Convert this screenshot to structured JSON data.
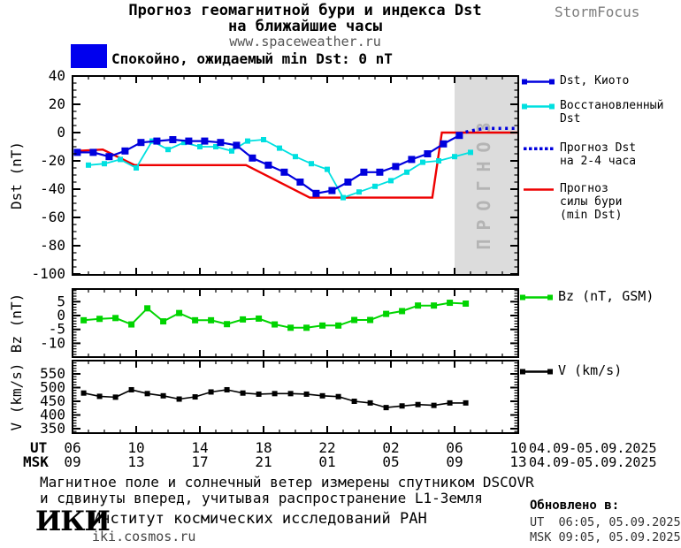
{
  "header": {
    "title_line1": "Прогноз геомагнитной бури и индекса Dst",
    "title_line2": "на ближайшие часы",
    "website": "www.spaceweather.ru",
    "brand": "StormFocus"
  },
  "status_banner": {
    "swatch_color": "#0000ee",
    "text": "Спокойно, ожидаемый min Dst: 0 nT"
  },
  "colors": {
    "dst_kyoto": "#0000dd",
    "dst_reconstructed": "#00e0e0",
    "dst_forecast": "#0000dd",
    "storm_forecast": "#ee0000",
    "bz": "#00d400",
    "v": "#000000",
    "forecast_region_bg": "#dcdcdc",
    "forecast_region_text": "#b4b4b4"
  },
  "chart_data": {
    "type": "line",
    "title": "Прогноз геомагнитной бури и индекса Dst на ближайшие часы",
    "x_axis": {
      "row1_label": "UT",
      "row2_label": "MSK",
      "major_hours": [
        6,
        10,
        14,
        18,
        22,
        26,
        30,
        34
      ],
      "ut_labels": [
        "06",
        "10",
        "14",
        "18",
        "22",
        "02",
        "06",
        "10"
      ],
      "msk_labels": [
        "09",
        "13",
        "17",
        "21",
        "01",
        "05",
        "09",
        "13"
      ],
      "date_note": "04.09-05.09.2025",
      "hours_range": [
        6,
        34
      ]
    },
    "panels": [
      {
        "id": "main",
        "ylabel": "Dst (nT)",
        "ylim": [
          -100,
          40
        ],
        "yticks": [
          40,
          20,
          0,
          -20,
          -40,
          -60,
          -80,
          -100
        ],
        "forecast_region": {
          "from_hour": 30,
          "to_hour": 34,
          "label": "ПРОГНОЗ"
        },
        "series": [
          {
            "id": "storm-forecast",
            "name": "Прогноз силы бури (min Dst)",
            "color": "#ee0000",
            "width": 2.4,
            "points": [
              [
                6.2,
                -13
              ],
              [
                7.9,
                -12
              ],
              [
                9.9,
                -23
              ],
              [
                16.9,
                -23
              ],
              [
                20.9,
                -46
              ],
              [
                28.6,
                -46
              ],
              [
                29.2,
                0
              ],
              [
                34,
                0
              ]
            ]
          },
          {
            "id": "dst-reconstructed",
            "name": "Восстановленный Dst",
            "color": "#00e0e0",
            "width": 1.8,
            "marker": true,
            "marker_size": 6,
            "x0": 7.0,
            "dx": 1,
            "values": [
              -23,
              -22,
              -19,
              -25,
              -6,
              -12,
              -7,
              -10,
              -10,
              -13,
              -6,
              -5,
              -11,
              -17,
              -22,
              -26,
              -46,
              -42,
              -38,
              -34,
              -28,
              -21,
              -20,
              -17,
              -14
            ]
          },
          {
            "id": "dst-kyoto",
            "name": "Dst, Киото",
            "color": "#0000dd",
            "width": 2.2,
            "marker": true,
            "marker_size": 8,
            "x0": 6.3,
            "dx": 1,
            "values": [
              -14,
              -14,
              -17,
              -13,
              -7,
              -6,
              -5,
              -6,
              -6,
              -7,
              -9,
              -18,
              -23,
              -28,
              -35,
              -43,
              -41,
              -35,
              -28,
              -28,
              -24,
              -19,
              -15,
              -8,
              -2
            ]
          },
          {
            "id": "dst-forecast-dotted",
            "name": "Прогноз Dst на 2-4 часа",
            "color": "#0000dd",
            "style": "dotted",
            "points": [
              [
                30.3,
                -1
              ],
              [
                30.9,
                1
              ],
              [
                31.4,
                2
              ],
              [
                31.9,
                3
              ],
              [
                32.4,
                3
              ],
              [
                32.9,
                3
              ],
              [
                33.4,
                3
              ],
              [
                33.8,
                3
              ]
            ]
          }
        ]
      },
      {
        "id": "bz",
        "ylabel": "Bz (nT)",
        "ylim": [
          -15,
          9.5
        ],
        "yticks": [
          5,
          0,
          -5,
          -10
        ],
        "series": [
          {
            "id": "bz-gsm",
            "name": "Bz (nT, GSM)",
            "color": "#00d400",
            "width": 2,
            "marker": true,
            "marker_size": 7,
            "x0": 6.7,
            "dx": 1,
            "values": [
              -1.7,
              -1.2,
              -0.9,
              -3.2,
              2.6,
              -2.1,
              0.9,
              -1.7,
              -1.7,
              -3.1,
              -1.4,
              -1.1,
              -3.2,
              -4.4,
              -4.4,
              -3.6,
              -3.6,
              -1.6,
              -1.6,
              0.6,
              1.6,
              3.6,
              3.6,
              4.6,
              4.3
            ]
          }
        ]
      },
      {
        "id": "v",
        "ylabel": "V (km/s)",
        "ylim": [
          334,
          598
        ],
        "yticks": [
          550,
          500,
          450,
          400,
          350
        ],
        "series": [
          {
            "id": "solar-wind-speed",
            "name": "V (km/s)",
            "color": "#000000",
            "width": 1.6,
            "marker": true,
            "marker_size": 6,
            "x0": 6.7,
            "dx": 1,
            "values": [
              480,
              468,
              465,
              492,
              478,
              470,
              458,
              466,
              484,
              492,
              480,
              476,
              478,
              478,
              476,
              470,
              467,
              450,
              444,
              427,
              433,
              438,
              435,
              444,
              444
            ]
          }
        ]
      }
    ]
  },
  "legends": {
    "main": [
      {
        "label_lines": [
          "Dst, Киото"
        ],
        "color": "#0000dd",
        "swatch": "line-markers"
      },
      {
        "label_lines": [
          "Восстановленный",
          "Dst"
        ],
        "color": "#00e0e0",
        "swatch": "line-markers"
      },
      {
        "label_lines": [
          "Прогноз Dst",
          "на 2-4 часа"
        ],
        "color": "#0000dd",
        "swatch": "dotted"
      },
      {
        "label_lines": [
          "Прогноз",
          "силы бури",
          "(min Dst)"
        ],
        "color": "#ee0000",
        "swatch": "line"
      }
    ],
    "bz": {
      "label": "Bz (nT, GSM)",
      "color": "#00d400",
      "swatch": "line-markers"
    },
    "v": {
      "label": "V (km/s)",
      "color": "#000000",
      "swatch": "line-markers"
    }
  },
  "footer": {
    "note_line1": "Магнитное поле и солнечный ветер измерены спутником DSCOVR",
    "note_line2": "и сдвинуты вперед, учитывая распространение L1-Земля",
    "logo_text": "ИКИ",
    "institute": "Институт космических исследований РАН",
    "institute_site": "iki.cosmos.ru"
  },
  "updated": {
    "label": "Обновлено в:",
    "ut": "UT  06:05, 05.09.2025",
    "msk": "MSK 09:05, 05.09.2025"
  }
}
